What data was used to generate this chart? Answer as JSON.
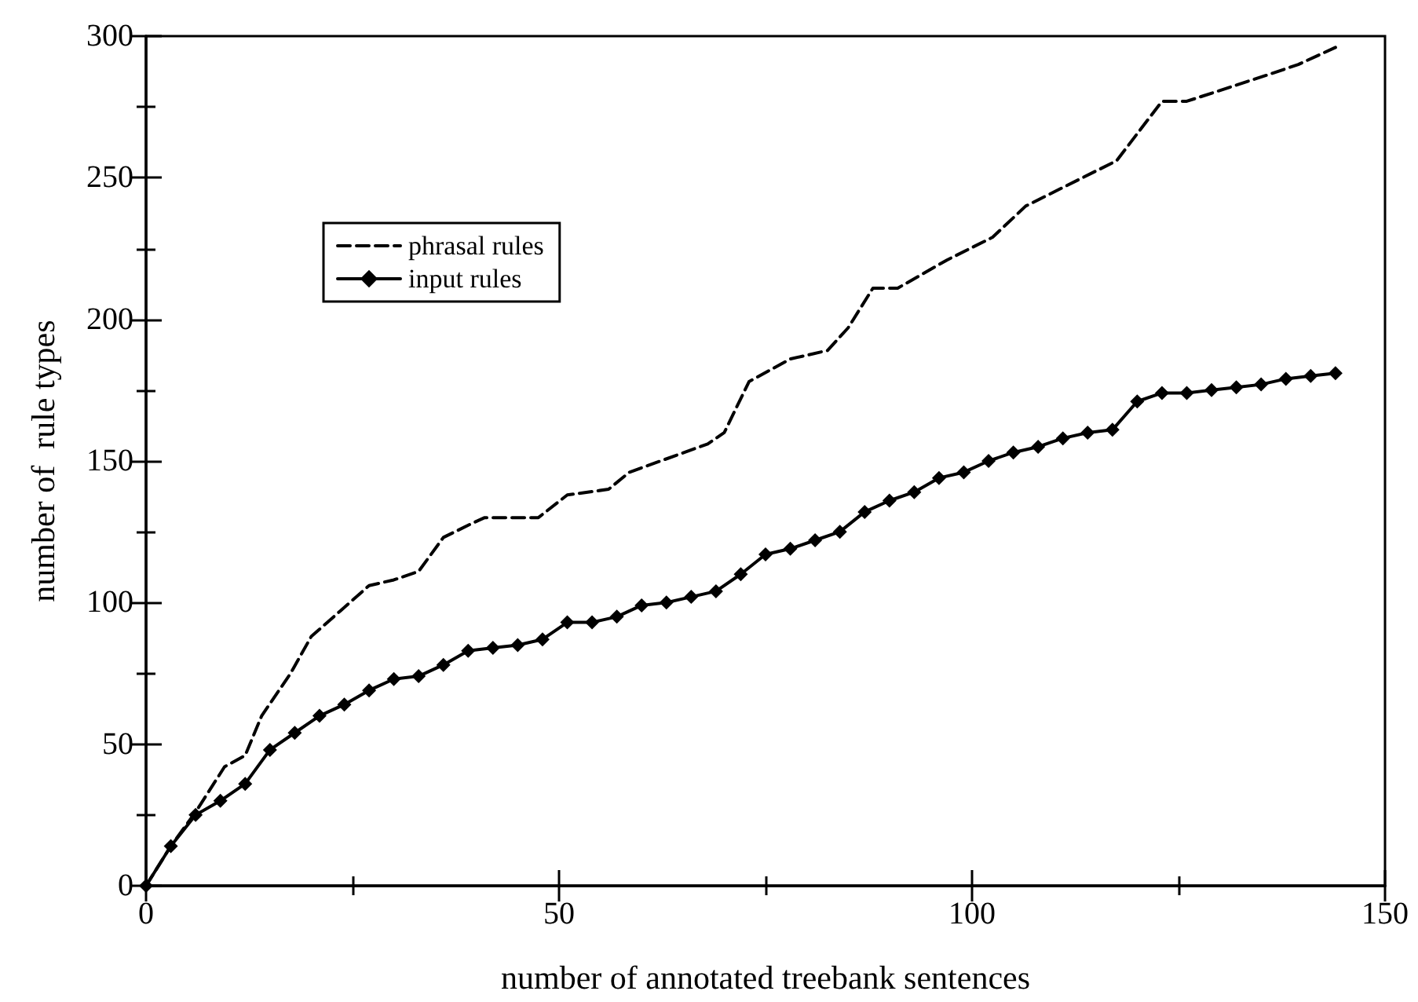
{
  "chart_data": {
    "type": "line",
    "xlabel": "number of annotated treebank sentences",
    "ylabel": "number of  rule types",
    "xlim": [
      0,
      150
    ],
    "xticks": [
      0,
      50,
      100,
      150
    ],
    "ylim": [
      0,
      300
    ],
    "yticks": [
      0,
      50,
      100,
      150,
      200,
      250,
      300
    ],
    "grid": false,
    "legend": "top left",
    "series": [
      {
        "name": "phrasal rules",
        "color": "#000000",
        "line_style": "dashed",
        "marker": "none",
        "x": [
          0,
          3,
          6,
          9.5,
          12,
          14,
          17.5,
          20,
          23.5,
          27,
          30,
          33,
          36,
          39.5,
          41,
          47.5,
          51,
          56,
          58.5,
          68,
          70,
          73,
          78,
          82.5,
          85,
          88,
          91,
          97,
          102.5,
          106.5,
          117.5,
          123,
          126,
          136.5,
          139.5,
          144
        ],
        "values": [
          0,
          14,
          26,
          42,
          46,
          60,
          75,
          88,
          97,
          106,
          108,
          111,
          123,
          128,
          130,
          130,
          138,
          140,
          146,
          156,
          160,
          178,
          186,
          189,
          197,
          211,
          211,
          221,
          229,
          240,
          256,
          277,
          277,
          287,
          290,
          296
        ]
      },
      {
        "name": "input rules",
        "color": "#000000",
        "line_style": "solid",
        "marker": "diamond",
        "x": [
          0,
          3,
          6,
          9,
          12,
          15,
          18,
          21,
          24,
          27,
          30,
          33,
          36,
          39,
          42,
          45,
          48,
          51,
          54,
          57,
          60,
          63,
          66,
          69,
          72,
          75,
          78,
          81,
          84,
          87,
          90,
          93,
          96,
          99,
          102,
          105,
          108,
          111,
          114,
          117,
          120,
          123,
          126,
          129,
          132,
          135,
          138,
          141,
          144
        ],
        "values": [
          0,
          14,
          25,
          30,
          36,
          48,
          54,
          60,
          64,
          69,
          73,
          74,
          78,
          83,
          84,
          85,
          87,
          93,
          93,
          95,
          99,
          100,
          102,
          104,
          110,
          117,
          119,
          122,
          125,
          132,
          136,
          139,
          144,
          146,
          150,
          153,
          155,
          158,
          160,
          161,
          171,
          174,
          174,
          175,
          176,
          177,
          179,
          180,
          181
        ]
      }
    ]
  }
}
